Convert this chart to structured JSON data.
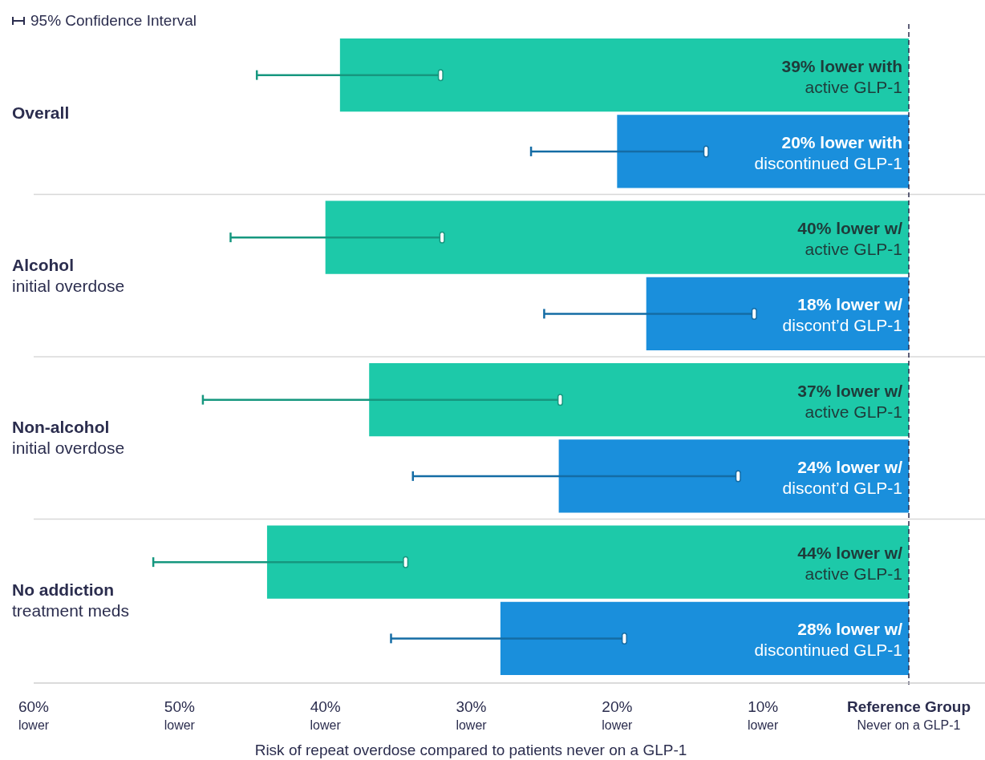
{
  "chart_data": {
    "type": "bar",
    "orientation": "horizontal",
    "categories": [
      "Overall",
      "Alcohol\ninitial overdose",
      "Non-alcohol\ninitial overdose",
      "No addiction\ntreatment meds"
    ],
    "series": [
      {
        "color": "#1dc9a9",
        "values": [
          39,
          40,
          37,
          44
        ],
        "errors": [
          [
            32.1,
            44.7
          ],
          [
            32.0,
            46.5
          ],
          [
            23.9,
            48.4
          ],
          [
            34.5,
            51.8
          ]
        ],
        "value_labels": [
          "39% lower with\nactive GLP-1",
          "40% lower w/\nactive GLP-1",
          "37% lower w/\nactive GLP-1",
          "44% lower w/\nactive GLP-1"
        ]
      },
      {
        "color": "#1a8fdc",
        "values": [
          20,
          18,
          24,
          28
        ],
        "errors": [
          [
            13.9,
            25.9
          ],
          [
            10.6,
            25.0
          ],
          [
            11.7,
            34.0
          ],
          [
            19.5,
            35.5
          ]
        ],
        "value_labels": [
          "20% lower with\ndiscontinued GLP-1",
          "18% lower w/\ndiscont’d GLP-1",
          "24% lower w/\ndiscont’d GLP-1",
          "28% lower w/\ndiscontinued GLP-1"
        ]
      }
    ],
    "xlim": [
      60,
      0
    ],
    "xticks": [
      {
        "value": 60,
        "label": "60%\nlower"
      },
      {
        "value": 50,
        "label": "50%\nlower"
      },
      {
        "value": 40,
        "label": "40%\nlower"
      },
      {
        "value": 30,
        "label": "30%\nlower"
      },
      {
        "value": 20,
        "label": "20%\nlower"
      },
      {
        "value": 10,
        "label": "10%\nlower"
      },
      {
        "value": 0,
        "label": "Reference Group\nNever on a GLP-1"
      }
    ],
    "xlabel": "Risk of repeat overdose compared to patients never on a GLP-1",
    "ref_lines": [
      {
        "axis": "x",
        "value": 0,
        "color": "#2b2d4e",
        "line_style": "dashed"
      }
    ],
    "annotations": [
      "95% Confidence Interval"
    ]
  }
}
